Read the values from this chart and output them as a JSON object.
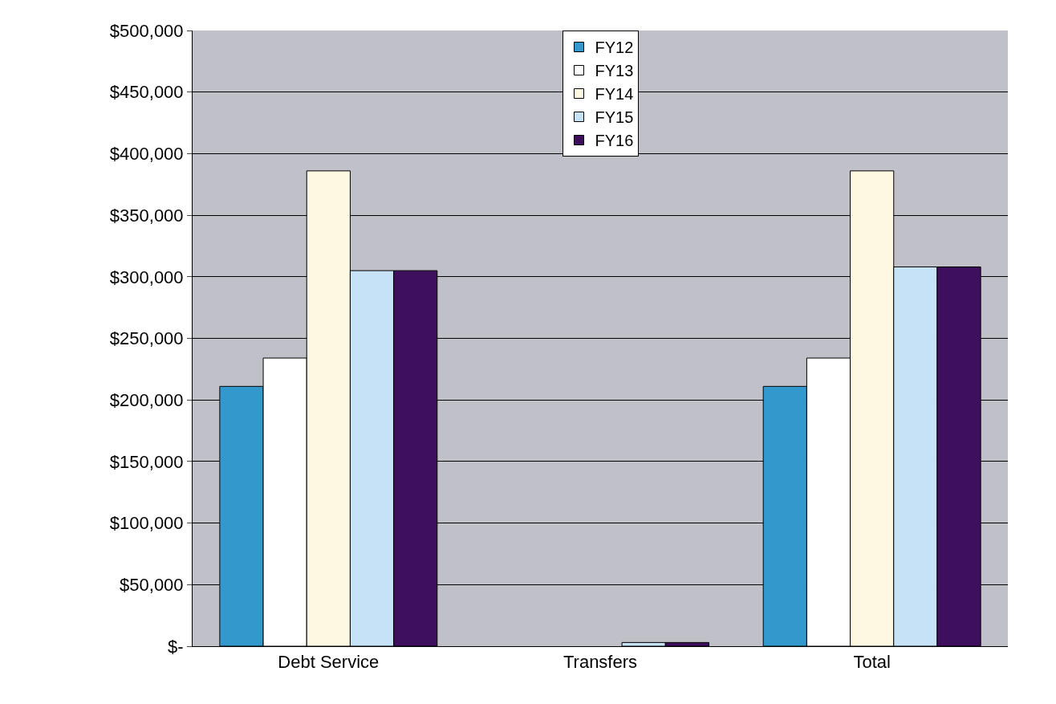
{
  "chart_data": {
    "type": "bar",
    "categories": [
      "Debt Service",
      "Transfers",
      "Total"
    ],
    "series": [
      {
        "name": "FY12",
        "color": "#3399cc",
        "values": [
          211000,
          null,
          211000
        ]
      },
      {
        "name": "FY13",
        "color": "#ffffff",
        "values": [
          234000,
          null,
          234000
        ]
      },
      {
        "name": "FY14",
        "color": "#fdf8e1",
        "values": [
          386000,
          null,
          386000
        ]
      },
      {
        "name": "FY15",
        "color": "#c6e2f7",
        "values": [
          305000,
          3000,
          308000
        ]
      },
      {
        "name": "FY16",
        "color": "#3d0f5c",
        "values": [
          305000,
          3000,
          308000
        ]
      }
    ],
    "ylim": [
      0,
      500000
    ],
    "yticks": [
      {
        "value": 0,
        "label": "$-"
      },
      {
        "value": 50000,
        "label": "$50,000"
      },
      {
        "value": 100000,
        "label": "$100,000"
      },
      {
        "value": 150000,
        "label": "$150,000"
      },
      {
        "value": 200000,
        "label": "$200,000"
      },
      {
        "value": 250000,
        "label": "$250,000"
      },
      {
        "value": 300000,
        "label": "$300,000"
      },
      {
        "value": 350000,
        "label": "$350,000"
      },
      {
        "value": 400000,
        "label": "$400,000"
      },
      {
        "value": 450000,
        "label": "$450,000"
      },
      {
        "value": 500000,
        "label": "$500,000"
      }
    ],
    "grid": "y",
    "legend": "top"
  }
}
